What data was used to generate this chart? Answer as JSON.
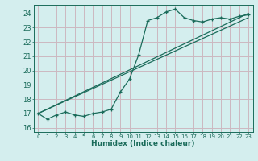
{
  "background_color": "#d4eeee",
  "grid_color": "#ccb8c0",
  "line_color": "#1a6b5a",
  "xlabel": "Humidex (Indice chaleur)",
  "xlim": [
    -0.5,
    23.5
  ],
  "ylim": [
    15.7,
    24.6
  ],
  "yticks": [
    16,
    17,
    18,
    19,
    20,
    21,
    22,
    23,
    24
  ],
  "xticks": [
    0,
    1,
    2,
    3,
    4,
    5,
    6,
    7,
    8,
    9,
    10,
    11,
    12,
    13,
    14,
    15,
    16,
    17,
    18,
    19,
    20,
    21,
    22,
    23
  ],
  "line1_x": [
    0,
    1,
    2,
    3,
    4,
    5,
    6,
    7,
    8,
    9,
    10,
    11,
    12,
    13,
    14,
    15,
    16,
    17,
    18,
    19,
    20,
    21,
    22,
    23
  ],
  "line1_y": [
    17.0,
    16.6,
    16.9,
    17.1,
    16.9,
    16.8,
    17.0,
    17.1,
    17.3,
    18.5,
    19.4,
    21.1,
    23.5,
    23.7,
    24.1,
    24.3,
    23.7,
    23.5,
    23.4,
    23.6,
    23.7,
    23.6,
    23.8,
    23.9
  ],
  "line2_x": [
    0,
    23
  ],
  "line2_y": [
    17.0,
    24.0
  ],
  "line3_x": [
    0,
    23
  ],
  "line3_y": [
    17.0,
    23.7
  ],
  "xtick_fontsize": 5.0,
  "ytick_fontsize": 6.0,
  "xlabel_fontsize": 6.5
}
